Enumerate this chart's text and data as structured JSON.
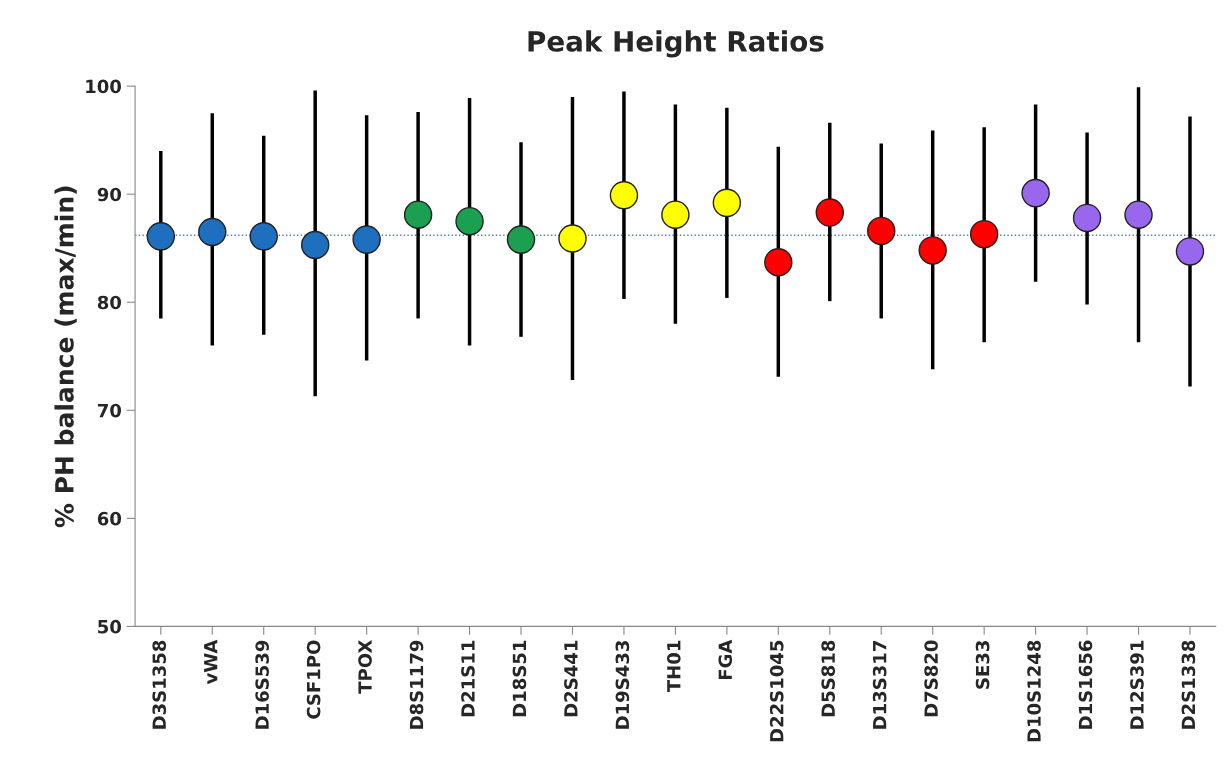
{
  "chart_data": {
    "type": "scatter",
    "title": "Peak Height Ratios",
    "ylabel": "% PH balance (max/min)",
    "categories": [
      "D3S1358",
      "vWA",
      "D16S539",
      "CSF1PO",
      "TPOX",
      "D8S1179",
      "D21S11",
      "D18S51",
      "D2S441",
      "D19S433",
      "TH01",
      "FGA",
      "D22S1045",
      "D5S818",
      "D13S317",
      "D7S820",
      "SE33",
      "D10S1248",
      "D1S1656",
      "D12S391",
      "D2S1338"
    ],
    "values": [
      86.1,
      86.5,
      86.1,
      85.3,
      85.8,
      88.1,
      87.5,
      85.8,
      85.9,
      89.9,
      88.1,
      89.2,
      83.7,
      88.3,
      86.6,
      84.8,
      86.3,
      90.1,
      87.8,
      88.1,
      84.7
    ],
    "errors": [
      [
        78.5,
        94.0
      ],
      [
        76.0,
        97.5
      ],
      [
        77.0,
        95.4
      ],
      [
        71.3,
        99.6
      ],
      [
        74.6,
        97.3
      ],
      [
        78.5,
        97.6
      ],
      [
        76.0,
        98.9
      ],
      [
        76.8,
        94.8
      ],
      [
        72.8,
        99.0
      ],
      [
        80.3,
        99.5
      ],
      [
        78.0,
        98.3
      ],
      [
        80.4,
        98.0
      ],
      [
        73.1,
        94.4
      ],
      [
        80.1,
        96.6
      ],
      [
        78.5,
        94.7
      ],
      [
        73.8,
        95.9
      ],
      [
        76.3,
        96.2
      ],
      [
        81.9,
        98.3
      ],
      [
        79.8,
        95.7
      ],
      [
        76.3,
        99.9
      ],
      [
        72.2,
        97.2
      ]
    ],
    "colors": [
      "#1f6fbf",
      "#1f6fbf",
      "#1f6fbf",
      "#1f6fbf",
      "#1f6fbf",
      "#1aa050",
      "#1aa050",
      "#1aa050",
      "#ffff00",
      "#ffff00",
      "#ffff00",
      "#ffff00",
      "#ff0000",
      "#ff0000",
      "#ff0000",
      "#ff0000",
      "#ff0000",
      "#9966ee",
      "#9966ee",
      "#9966ee",
      "#9966ee"
    ],
    "ylim": [
      50,
      100
    ],
    "yticks": [
      50,
      60,
      70,
      80,
      90,
      100
    ],
    "marker": "circle",
    "grid": false,
    "legend": false,
    "ref_lines": [
      {
        "axis": "y",
        "value": 86.2,
        "color": "#4a7ebb",
        "line_style": "dotted"
      }
    ]
  }
}
